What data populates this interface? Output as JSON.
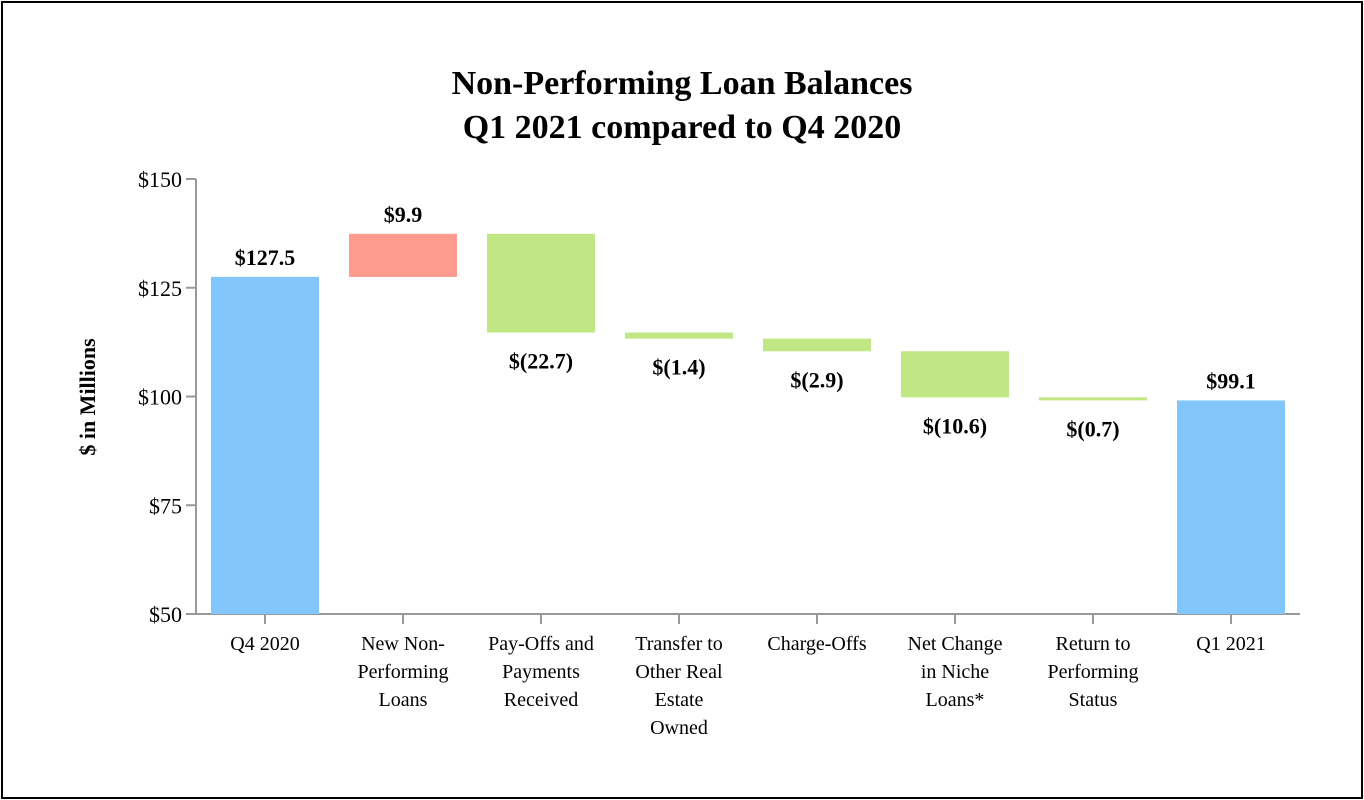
{
  "chart_data": {
    "type": "bar",
    "subtype": "waterfall",
    "title": [
      "Non-Performing Loan Balances",
      "Q1 2021 compared to Q4 2020"
    ],
    "ylabel": "$ in Millions",
    "xlabel": "",
    "ylim": [
      50,
      150
    ],
    "yticks": [
      50,
      75,
      100,
      125,
      150
    ],
    "ytick_labels": [
      "$50",
      "$75",
      "$100",
      "$125",
      "$150"
    ],
    "grid": false,
    "legend": "none",
    "categories": [
      [
        "Q4 2020"
      ],
      [
        "New Non-",
        "Performing",
        "Loans"
      ],
      [
        "Pay-Offs and",
        "Payments",
        "Received"
      ],
      [
        "Transfer to",
        "Other Real",
        "Estate",
        "Owned"
      ],
      [
        "Charge-Offs"
      ],
      [
        "Net Change",
        "in Niche",
        "Loans*"
      ],
      [
        "Return to",
        "Performing",
        "Status"
      ],
      [
        "Q1 2021"
      ]
    ],
    "bars": [
      {
        "kind": "total",
        "start": 0,
        "end": 127.5,
        "label": "$127.5"
      },
      {
        "kind": "increase",
        "start": 127.5,
        "end": 137.4,
        "label": "$9.9"
      },
      {
        "kind": "decrease",
        "start": 137.4,
        "end": 114.7,
        "label": "$(22.7)"
      },
      {
        "kind": "decrease",
        "start": 114.7,
        "end": 113.3,
        "label": "$(1.4)"
      },
      {
        "kind": "decrease",
        "start": 113.3,
        "end": 110.4,
        "label": "$(2.9)"
      },
      {
        "kind": "decrease",
        "start": 110.4,
        "end": 99.8,
        "label": "$(10.6)"
      },
      {
        "kind": "decrease",
        "start": 99.8,
        "end": 99.1,
        "label": "$(0.7)"
      },
      {
        "kind": "total",
        "start": 0,
        "end": 99.1,
        "label": "$99.1"
      }
    ],
    "colors": {
      "total": "#82c6fb",
      "increase": "#ff9a8e",
      "decrease": "#c1e785",
      "axis": "#999999"
    }
  }
}
